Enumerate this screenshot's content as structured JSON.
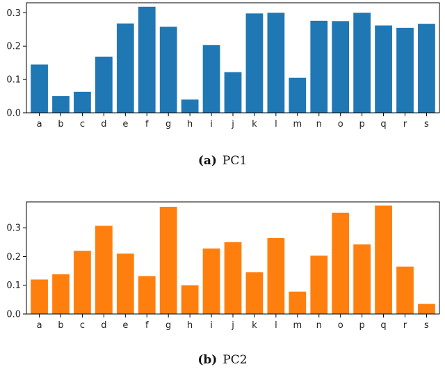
{
  "chart_data": [
    {
      "type": "bar",
      "title": "",
      "xlabel": "",
      "ylabel": "",
      "ylim": [
        0,
        0.33
      ],
      "yticks": [
        0.0,
        0.1,
        0.2,
        0.3
      ],
      "ytick_labels": [
        "0.0",
        "0.1",
        "0.2",
        "0.3"
      ],
      "grid": false,
      "color": "#1f77b4",
      "categories": [
        "a",
        "b",
        "c",
        "d",
        "e",
        "f",
        "g",
        "h",
        "i",
        "j",
        "k",
        "l",
        "m",
        "n",
        "o",
        "p",
        "q",
        "r",
        "s"
      ],
      "values": [
        0.145,
        0.05,
        0.063,
        0.168,
        0.268,
        0.318,
        0.258,
        0.04,
        0.203,
        0.122,
        0.298,
        0.3,
        0.105,
        0.276,
        0.275,
        0.3,
        0.262,
        0.255,
        0.267
      ],
      "caption_letter": "(a)",
      "caption_text": "PC1"
    },
    {
      "type": "bar",
      "title": "",
      "xlabel": "",
      "ylabel": "",
      "ylim": [
        0,
        0.39
      ],
      "yticks": [
        0.0,
        0.1,
        0.2,
        0.3
      ],
      "ytick_labels": [
        "0.0",
        "0.1",
        "0.2",
        "0.3"
      ],
      "grid": false,
      "color": "#ff7f0e",
      "categories": [
        "a",
        "b",
        "c",
        "d",
        "e",
        "f",
        "g",
        "h",
        "i",
        "j",
        "k",
        "l",
        "m",
        "n",
        "o",
        "p",
        "q",
        "r",
        "s"
      ],
      "values": [
        0.12,
        0.138,
        0.22,
        0.307,
        0.21,
        0.132,
        0.373,
        0.1,
        0.228,
        0.25,
        0.145,
        0.264,
        0.078,
        0.203,
        0.352,
        0.242,
        0.377,
        0.165,
        0.035
      ],
      "caption_letter": "(b)",
      "caption_text": "PC2"
    }
  ]
}
